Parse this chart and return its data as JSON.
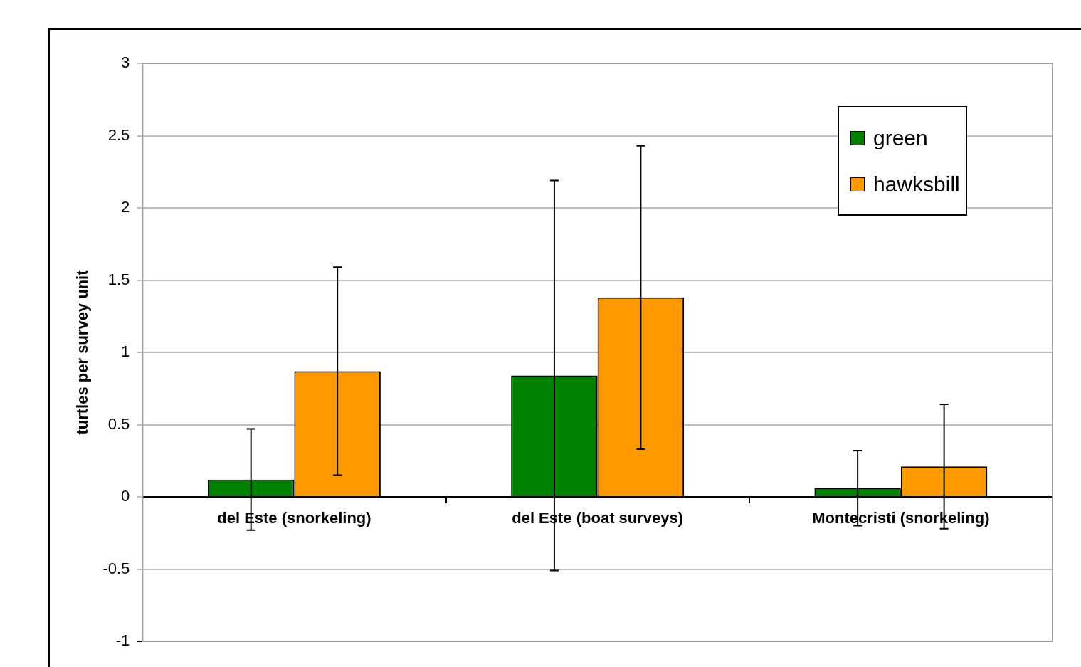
{
  "chart_data": {
    "type": "bar",
    "ylabel": "turtles per survey unit",
    "categories": [
      "del Este (snorkeling)",
      "del Este (boat surveys)",
      "Montecristi (snorkeling)"
    ],
    "series": [
      {
        "name": "green",
        "color": "#008000",
        "values": [
          0.12,
          0.84,
          0.06
        ],
        "errors": [
          0.35,
          1.35,
          0.26
        ]
      },
      {
        "name": "hawksbill",
        "color": "#ff9900",
        "values": [
          0.87,
          1.38,
          0.21
        ],
        "errors": [
          0.72,
          1.05,
          0.43
        ]
      }
    ],
    "ylim": [
      -1,
      3
    ],
    "yticks": [
      -1,
      -0.5,
      0,
      0.5,
      1,
      1.5,
      2,
      2.5,
      3
    ],
    "grid": "y",
    "legend": "top right"
  }
}
